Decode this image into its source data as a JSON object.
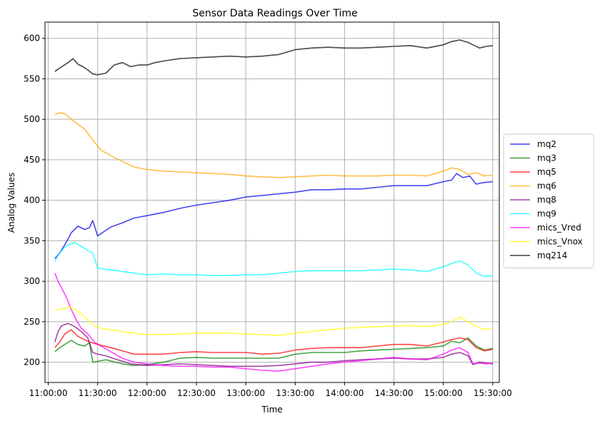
{
  "chart_data": {
    "type": "line",
    "title": "Sensor Data Readings Over Time",
    "xlabel": "Time",
    "ylabel": "Analog Values",
    "xlim": [
      "10:58:00",
      "15:34:00"
    ],
    "ylim": [
      175,
      620
    ],
    "x_ticks": [
      "11:00:00",
      "11:30:00",
      "12:00:00",
      "12:30:00",
      "13:00:00",
      "13:30:00",
      "14:00:00",
      "14:30:00",
      "15:00:00",
      "15:30:00"
    ],
    "y_ticks": [
      200,
      250,
      300,
      350,
      400,
      450,
      500,
      550,
      600
    ],
    "grid": true,
    "legend_position": "right-outside",
    "series": [
      {
        "name": "mq2",
        "color": "#0000ee",
        "x": [
          "11:04:00",
          "11:07:00",
          "11:10:00",
          "11:14:00",
          "11:18:00",
          "11:22:00",
          "11:25:00",
          "11:27:00",
          "11:30:00",
          "11:38:00",
          "11:45:00",
          "11:52:00",
          "12:00:00",
          "12:10:00",
          "12:20:00",
          "12:30:00",
          "12:40:00",
          "12:50:00",
          "13:00:00",
          "13:10:00",
          "13:20:00",
          "13:30:00",
          "13:40:00",
          "13:50:00",
          "14:00:00",
          "14:10:00",
          "14:20:00",
          "14:30:00",
          "14:40:00",
          "14:50:00",
          "15:00:00",
          "15:05:00",
          "15:08:00",
          "15:12:00",
          "15:16:00",
          "15:20:00",
          "15:25:00",
          "15:30:00"
        ],
        "values": [
          328,
          335,
          345,
          360,
          368,
          364,
          366,
          375,
          356,
          367,
          372,
          378,
          381,
          385,
          390,
          394,
          397,
          400,
          404,
          406,
          408,
          410,
          413,
          413,
          414,
          414,
          416,
          418,
          418,
          418,
          423,
          425,
          433,
          428,
          430,
          420,
          422,
          423
        ]
      },
      {
        "name": "mq3",
        "color": "#008000",
        "x": [
          "11:04:00",
          "11:07:00",
          "11:10:00",
          "11:14:00",
          "11:18:00",
          "11:22:00",
          "11:25:00",
          "11:27:00",
          "11:35:00",
          "11:45:00",
          "11:52:00",
          "12:00:00",
          "12:10:00",
          "12:20:00",
          "12:30:00",
          "12:40:00",
          "12:50:00",
          "13:00:00",
          "13:10:00",
          "13:20:00",
          "13:30:00",
          "13:40:00",
          "13:50:00",
          "14:00:00",
          "14:10:00",
          "14:20:00",
          "14:30:00",
          "14:40:00",
          "14:50:00",
          "15:00:00",
          "15:05:00",
          "15:10:00",
          "15:15:00",
          "15:20:00",
          "15:25:00",
          "15:30:00"
        ],
        "values": [
          213,
          218,
          222,
          227,
          222,
          220,
          224,
          200,
          203,
          198,
          196,
          197,
          200,
          205,
          206,
          205,
          205,
          205,
          205,
          205,
          210,
          212,
          212,
          212,
          214,
          215,
          216,
          217,
          218,
          220,
          226,
          224,
          230,
          220,
          215,
          217
        ]
      },
      {
        "name": "mq5",
        "color": "#ff0000",
        "x": [
          "11:04:00",
          "11:07:00",
          "11:10:00",
          "11:14:00",
          "11:18:00",
          "11:22:00",
          "11:25:00",
          "11:30:00",
          "11:38:00",
          "11:45:00",
          "11:52:00",
          "12:00:00",
          "12:10:00",
          "12:20:00",
          "12:30:00",
          "12:40:00",
          "12:50:00",
          "13:00:00",
          "13:10:00",
          "13:20:00",
          "13:30:00",
          "13:40:00",
          "13:50:00",
          "14:00:00",
          "14:10:00",
          "14:20:00",
          "14:30:00",
          "14:40:00",
          "14:50:00",
          "15:00:00",
          "15:05:00",
          "15:10:00",
          "15:15:00",
          "15:20:00",
          "15:25:00",
          "15:30:00"
        ],
        "values": [
          218,
          225,
          235,
          240,
          232,
          228,
          225,
          222,
          218,
          214,
          210,
          210,
          210,
          212,
          213,
          212,
          212,
          212,
          210,
          211,
          215,
          217,
          218,
          218,
          218,
          220,
          222,
          222,
          220,
          225,
          228,
          230,
          228,
          218,
          214,
          216
        ]
      },
      {
        "name": "mq6",
        "color": "#ffa500",
        "x": [
          "11:04:00",
          "11:07:00",
          "11:10:00",
          "11:14:00",
          "11:18:00",
          "11:22:00",
          "11:25:00",
          "11:28:00",
          "11:32:00",
          "11:38:00",
          "11:45:00",
          "11:52:00",
          "12:00:00",
          "12:10:00",
          "12:20:00",
          "12:30:00",
          "12:40:00",
          "12:50:00",
          "13:00:00",
          "13:10:00",
          "13:20:00",
          "13:30:00",
          "13:40:00",
          "13:50:00",
          "14:00:00",
          "14:10:00",
          "14:20:00",
          "14:30:00",
          "14:40:00",
          "14:50:00",
          "15:00:00",
          "15:05:00",
          "15:10:00",
          "15:15:00",
          "15:20:00",
          "15:25:00",
          "15:30:00"
        ],
        "values": [
          506,
          508,
          507,
          500,
          494,
          488,
          480,
          472,
          462,
          455,
          448,
          441,
          438,
          436,
          435,
          434,
          433,
          432,
          430,
          429,
          428,
          429,
          430,
          431,
          430,
          430,
          430,
          431,
          431,
          430,
          436,
          440,
          438,
          432,
          434,
          430,
          431
        ]
      },
      {
        "name": "mq8",
        "color": "#800080",
        "x": [
          "11:04:00",
          "11:06:00",
          "11:08:00",
          "11:12:00",
          "11:16:00",
          "11:20:00",
          "11:24:00",
          "11:27:00",
          "11:30:00",
          "11:35:00",
          "11:42:00",
          "11:50:00",
          "12:00:00",
          "12:10:00",
          "12:20:00",
          "12:30:00",
          "12:40:00",
          "12:50:00",
          "13:00:00",
          "13:10:00",
          "13:20:00",
          "13:30:00",
          "13:40:00",
          "13:50:00",
          "14:00:00",
          "14:10:00",
          "14:20:00",
          "14:30:00",
          "14:40:00",
          "14:50:00",
          "15:00:00",
          "15:05:00",
          "15:10:00",
          "15:15:00",
          "15:18:00",
          "15:22:00",
          "15:26:00",
          "15:30:00"
        ],
        "values": [
          225,
          238,
          245,
          248,
          244,
          238,
          230,
          212,
          210,
          208,
          203,
          198,
          196,
          197,
          198,
          197,
          196,
          195,
          195,
          195,
          196,
          198,
          200,
          200,
          202,
          203,
          204,
          205,
          204,
          204,
          206,
          210,
          212,
          208,
          197,
          200,
          199,
          198
        ]
      },
      {
        "name": "mq9",
        "color": "#00ffff",
        "x": [
          "11:04:00",
          "11:06:00",
          "11:09:00",
          "11:12:00",
          "11:16:00",
          "11:20:00",
          "11:24:00",
          "11:27:00",
          "11:30:00",
          "11:38:00",
          "11:45:00",
          "11:52:00",
          "12:00:00",
          "12:10:00",
          "12:20:00",
          "12:30:00",
          "12:40:00",
          "12:50:00",
          "13:00:00",
          "13:10:00",
          "13:20:00",
          "13:30:00",
          "13:40:00",
          "13:50:00",
          "14:00:00",
          "14:10:00",
          "14:20:00",
          "14:30:00",
          "14:40:00",
          "14:50:00",
          "15:00:00",
          "15:05:00",
          "15:10:00",
          "15:15:00",
          "15:20:00",
          "15:25:00",
          "15:30:00"
        ],
        "values": [
          324,
          332,
          340,
          345,
          348,
          343,
          338,
          335,
          316,
          314,
          312,
          310,
          308,
          309,
          308,
          308,
          307,
          307,
          308,
          308,
          310,
          312,
          313,
          313,
          313,
          313,
          314,
          315,
          314,
          312,
          318,
          322,
          325,
          320,
          310,
          306,
          307
        ]
      },
      {
        "name": "mics_Vred",
        "color": "#ff00ff",
        "x": [
          "11:04:00",
          "11:06:00",
          "11:08:00",
          "11:11:00",
          "11:14:00",
          "11:17:00",
          "11:20:00",
          "11:24:00",
          "11:28:00",
          "11:32:00",
          "11:38:00",
          "11:45:00",
          "11:52:00",
          "12:00:00",
          "12:10:00",
          "12:20:00",
          "12:30:00",
          "12:40:00",
          "12:50:00",
          "13:00:00",
          "13:10:00",
          "13:20:00",
          "13:30:00",
          "13:40:00",
          "13:50:00",
          "14:00:00",
          "14:10:00",
          "14:20:00",
          "14:30:00",
          "14:40:00",
          "14:50:00",
          "15:00:00",
          "15:05:00",
          "15:10:00",
          "15:15:00",
          "15:18:00",
          "15:22:00",
          "15:26:00",
          "15:30:00"
        ],
        "values": [
          310,
          300,
          292,
          280,
          265,
          252,
          242,
          235,
          225,
          220,
          213,
          205,
          200,
          198,
          196,
          195,
          195,
          194,
          194,
          192,
          190,
          189,
          192,
          195,
          198,
          200,
          202,
          204,
          206,
          204,
          203,
          210,
          215,
          218,
          212,
          198,
          199,
          198,
          199
        ]
      },
      {
        "name": "mics_Vnox",
        "color": "#ffff00",
        "x": [
          "11:04:00",
          "11:06:00",
          "11:09:00",
          "11:13:00",
          "11:17:00",
          "11:21:00",
          "11:25:00",
          "11:28:00",
          "11:32:00",
          "11:38:00",
          "11:45:00",
          "11:52:00",
          "12:00:00",
          "12:10:00",
          "12:20:00",
          "12:30:00",
          "12:40:00",
          "12:50:00",
          "13:00:00",
          "13:10:00",
          "13:20:00",
          "13:30:00",
          "13:40:00",
          "13:50:00",
          "14:00:00",
          "14:10:00",
          "14:20:00",
          "14:30:00",
          "14:40:00",
          "14:50:00",
          "15:00:00",
          "15:05:00",
          "15:10:00",
          "15:15:00",
          "15:20:00",
          "15:25:00",
          "15:30:00"
        ],
        "values": [
          264,
          265,
          266,
          268,
          264,
          258,
          250,
          245,
          242,
          240,
          238,
          236,
          234,
          234,
          235,
          236,
          236,
          236,
          235,
          234,
          233,
          236,
          238,
          240,
          242,
          243,
          244,
          245,
          245,
          244,
          247,
          250,
          256,
          250,
          244,
          240,
          242
        ]
      },
      {
        "name": "mq214",
        "color": "#000000",
        "x": [
          "11:04:00",
          "11:06:00",
          "11:09:00",
          "11:12:00",
          "11:15:00",
          "11:18:00",
          "11:21:00",
          "11:24:00",
          "11:27:00",
          "11:30:00",
          "11:35:00",
          "11:40:00",
          "11:45:00",
          "11:50:00",
          "11:55:00",
          "12:00:00",
          "12:05:00",
          "12:10:00",
          "12:20:00",
          "12:30:00",
          "12:40:00",
          "12:50:00",
          "13:00:00",
          "13:10:00",
          "13:20:00",
          "13:30:00",
          "13:40:00",
          "13:50:00",
          "14:00:00",
          "14:10:00",
          "14:20:00",
          "14:30:00",
          "14:40:00",
          "14:50:00",
          "15:00:00",
          "15:05:00",
          "15:10:00",
          "15:15:00",
          "15:18:00",
          "15:22:00",
          "15:26:00",
          "15:30:00"
        ],
        "values": [
          559,
          562,
          566,
          570,
          575,
          568,
          565,
          561,
          556,
          555,
          557,
          567,
          570,
          565,
          567,
          567,
          570,
          572,
          575,
          576,
          577,
          578,
          577,
          578,
          580,
          586,
          588,
          589,
          588,
          588,
          589,
          590,
          591,
          588,
          592,
          596,
          598,
          595,
          592,
          588,
          590,
          591
        ]
      }
    ]
  }
}
